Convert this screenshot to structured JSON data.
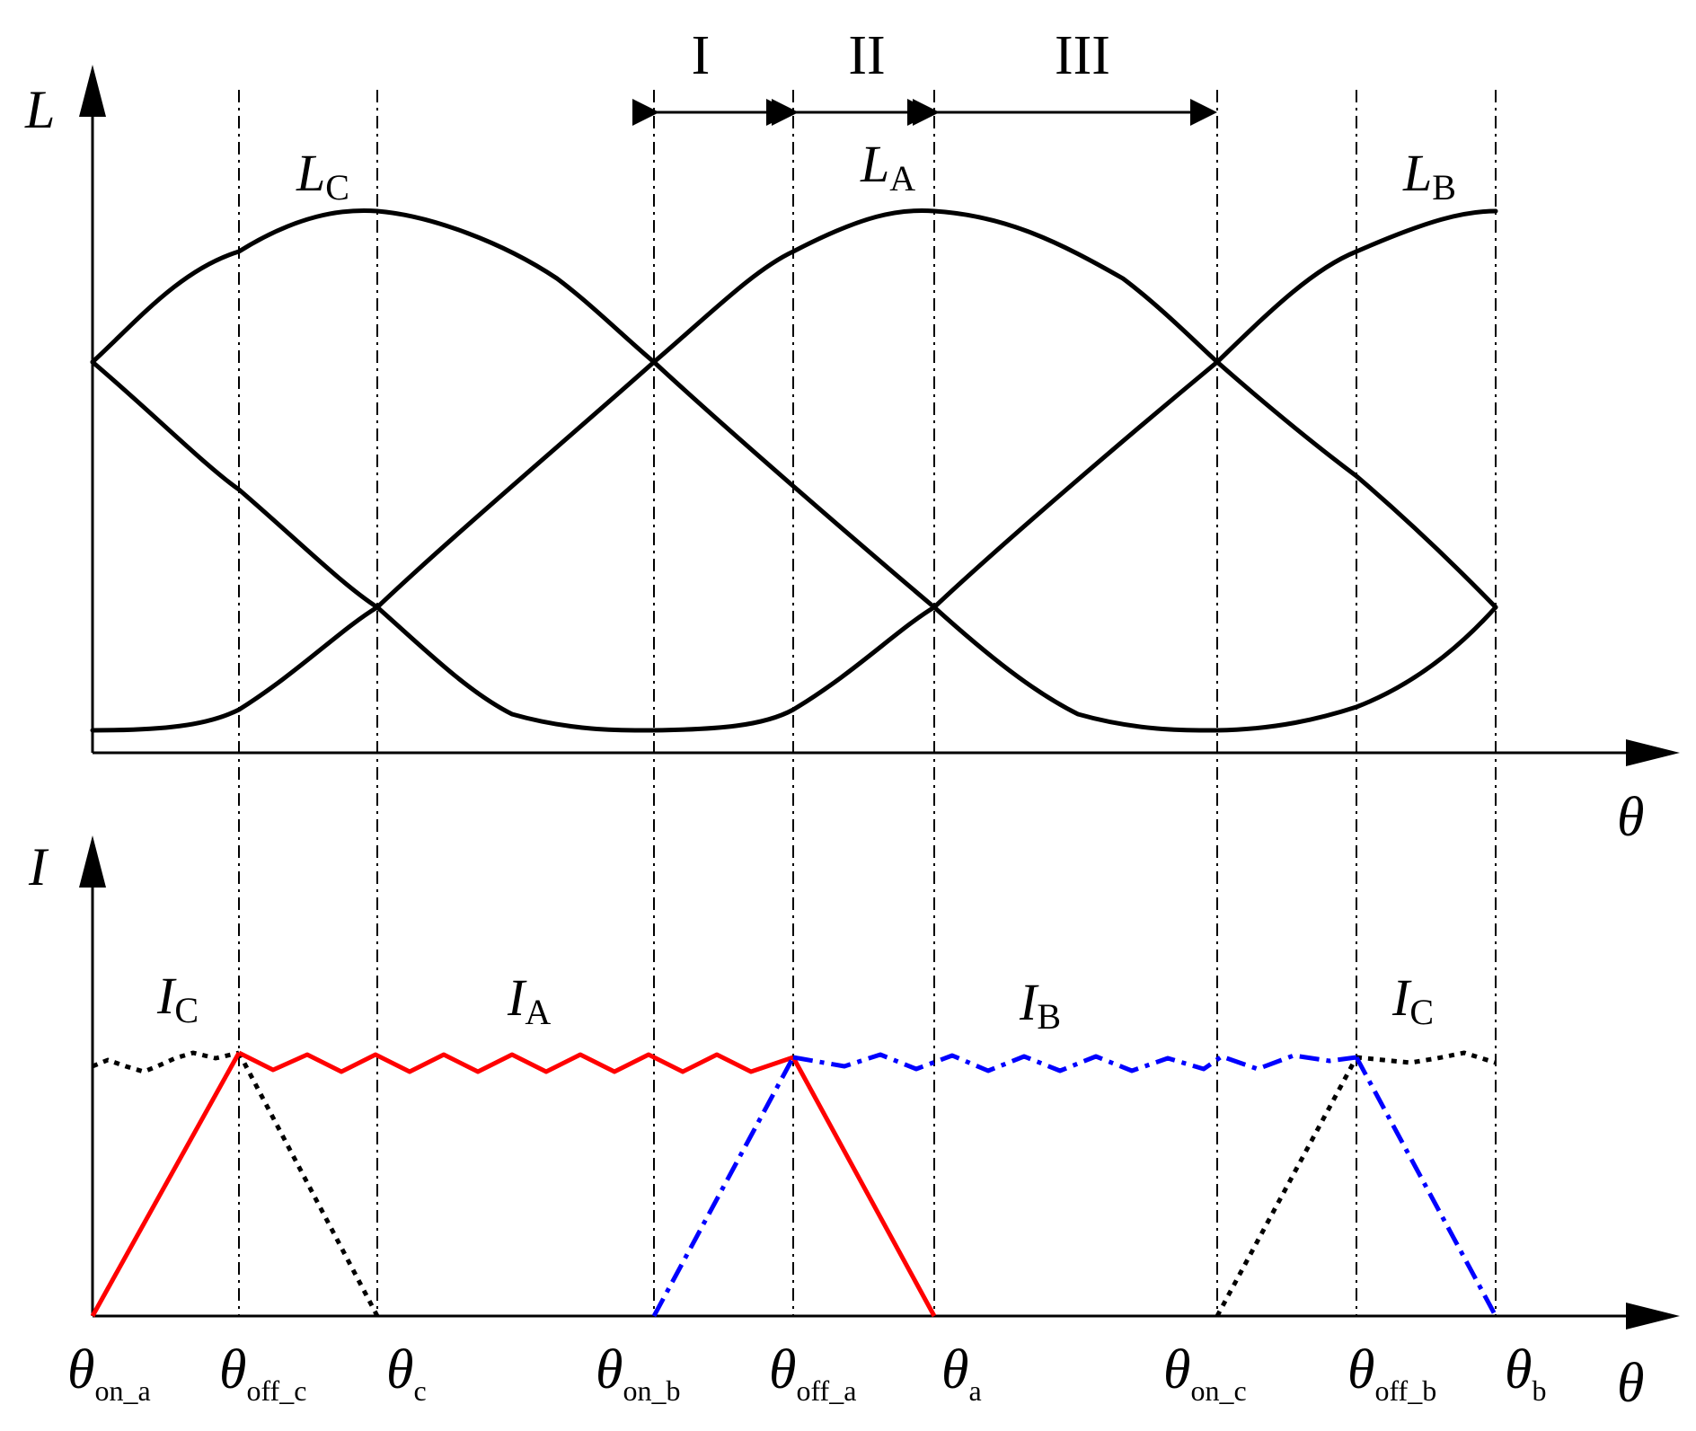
{
  "colors": {
    "axis": "#000000",
    "inductance": "#000000",
    "phase_a": "#ff0000",
    "phase_b": "#0000ff",
    "phase_c": "#000000"
  },
  "top_panel": {
    "y_axis_label": "L",
    "x_axis_label": "θ",
    "curve_labels": [
      {
        "id": "LC",
        "main": "L",
        "sub": "C"
      },
      {
        "id": "LA",
        "main": "L",
        "sub": "A"
      },
      {
        "id": "LB",
        "main": "L",
        "sub": "B"
      }
    ],
    "regions": [
      {
        "id": "I",
        "label": "I",
        "from": "theta_on_b",
        "to": "theta_off_a"
      },
      {
        "id": "II",
        "label": "II",
        "from": "theta_off_a",
        "to": "theta_a"
      },
      {
        "id": "III",
        "label": "III",
        "from": "theta_a",
        "to": "theta_on_c"
      }
    ]
  },
  "bottom_panel": {
    "y_axis_label": "I",
    "x_axis_label": "θ",
    "curve_labels": [
      {
        "id": "IC1",
        "main": "I",
        "sub": "C"
      },
      {
        "id": "IA",
        "main": "I",
        "sub": "A"
      },
      {
        "id": "IB",
        "main": "I",
        "sub": "B"
      },
      {
        "id": "IC2",
        "main": "I",
        "sub": "C"
      }
    ]
  },
  "angle_ticks": [
    {
      "id": "theta_on_a",
      "main": "θ",
      "sub": "on_a"
    },
    {
      "id": "theta_off_c",
      "main": "θ",
      "sub": "off_c"
    },
    {
      "id": "theta_c",
      "main": "θ",
      "sub": "c"
    },
    {
      "id": "theta_on_b",
      "main": "θ",
      "sub": "on_b"
    },
    {
      "id": "theta_off_a",
      "main": "θ",
      "sub": "off_a"
    },
    {
      "id": "theta_a",
      "main": "θ",
      "sub": "a"
    },
    {
      "id": "theta_on_c",
      "main": "θ",
      "sub": "on_c"
    },
    {
      "id": "theta_off_b",
      "main": "θ",
      "sub": "off_b"
    },
    {
      "id": "theta_b",
      "main": "θ",
      "sub": "b"
    }
  ]
}
